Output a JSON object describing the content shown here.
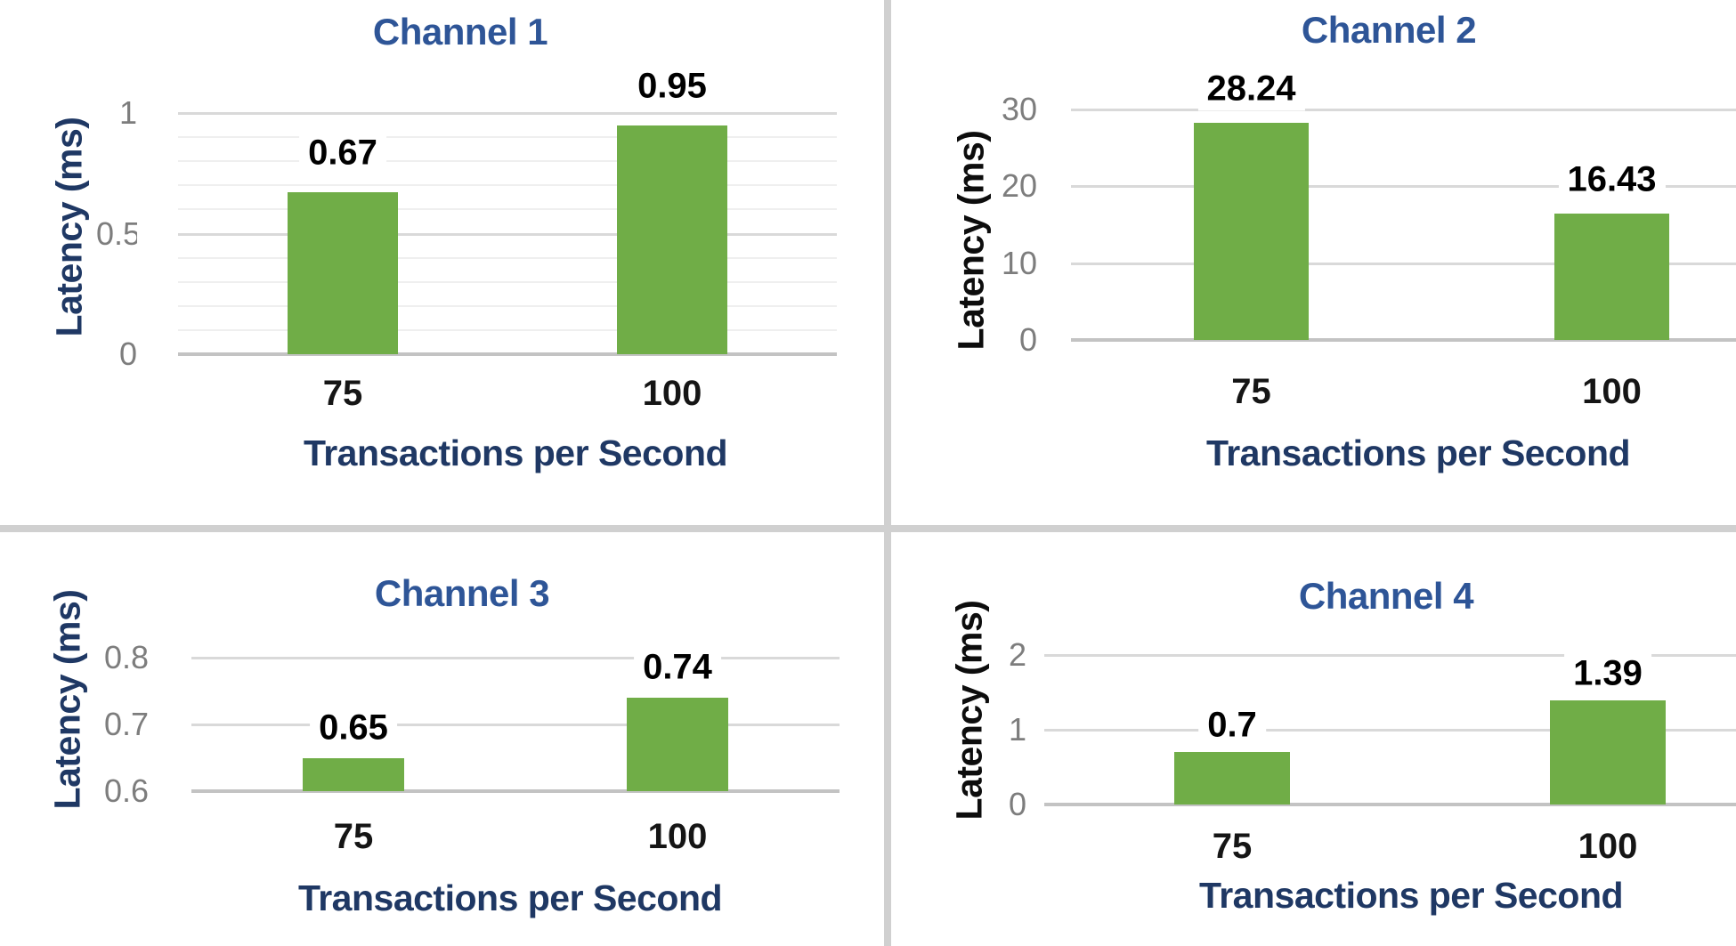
{
  "palette": {
    "bar_green": "#70ad47",
    "title_blue": "#2e5597",
    "axis_navy": "#1f3864",
    "axis_black": "#0d0d0d",
    "tick_gray": "#7d7d7d",
    "tick_black": "#151515",
    "label_black": "#000000",
    "grid_major": "#d9d9d9",
    "grid_minor": "#efefef",
    "axis_line": "#c3c3c3",
    "divider": "#d0d0d0",
    "background": "#ffffff"
  },
  "chart_data": [
    {
      "type": "bar",
      "title": "Channel 1",
      "ylabel": "Latency (ms)",
      "xlabel": "Transactions per Second",
      "categories": [
        "75",
        "100"
      ],
      "values": [
        0.67,
        0.95
      ],
      "data_labels": [
        "0.67",
        "0.95"
      ],
      "ylim": [
        0,
        1
      ],
      "yticks": [
        {
          "value": 1,
          "label": "1"
        },
        {
          "value": 0.5,
          "label": "0.5"
        },
        {
          "value": 0,
          "label": "0"
        }
      ],
      "minor_grid_step": 0.1,
      "grid": true,
      "legend": false,
      "ylabel_color": "#1f3864",
      "xlabel_color": "#1f3864"
    },
    {
      "type": "bar",
      "title": "Channel 2",
      "ylabel": "Latency (ms)",
      "xlabel": "Transactions per Second",
      "categories": [
        "75",
        "100"
      ],
      "values": [
        28.24,
        16.43
      ],
      "data_labels": [
        "28.24",
        "16.43"
      ],
      "ylim": [
        0,
        30
      ],
      "yticks": [
        {
          "value": 30,
          "label": "30"
        },
        {
          "value": 20,
          "label": "20"
        },
        {
          "value": 10,
          "label": "10"
        },
        {
          "value": 0,
          "label": "0"
        }
      ],
      "grid": true,
      "legend": false,
      "ylabel_color": "#0d0d0d",
      "xlabel_color": "#1f3864"
    },
    {
      "type": "bar",
      "title": "Channel 3",
      "ylabel": "Latency (ms)",
      "xlabel": "Transactions per Second",
      "categories": [
        "75",
        "100"
      ],
      "values": [
        0.65,
        0.74
      ],
      "data_labels": [
        "0.65",
        "0.74"
      ],
      "ylim": [
        0.6,
        0.8
      ],
      "yticks": [
        {
          "value": 0.8,
          "label": "0.8"
        },
        {
          "value": 0.7,
          "label": "0.7"
        },
        {
          "value": 0.6,
          "label": "0.6"
        }
      ],
      "grid": true,
      "legend": false,
      "ylabel_color": "#1f3864",
      "xlabel_color": "#1f3864"
    },
    {
      "type": "bar",
      "title": "Channel 4",
      "ylabel": "Latency (ms)",
      "xlabel": "Transactions per Second",
      "categories": [
        "75",
        "100"
      ],
      "values": [
        0.7,
        1.39
      ],
      "data_labels": [
        "0.7",
        "1.39"
      ],
      "ylim": [
        0,
        2
      ],
      "yticks": [
        {
          "value": 2,
          "label": "2"
        },
        {
          "value": 1,
          "label": "1"
        },
        {
          "value": 0,
          "label": "0"
        }
      ],
      "grid": true,
      "legend": false,
      "ylabel_color": "#0d0d0d",
      "xlabel_color": "#1f3864"
    }
  ]
}
